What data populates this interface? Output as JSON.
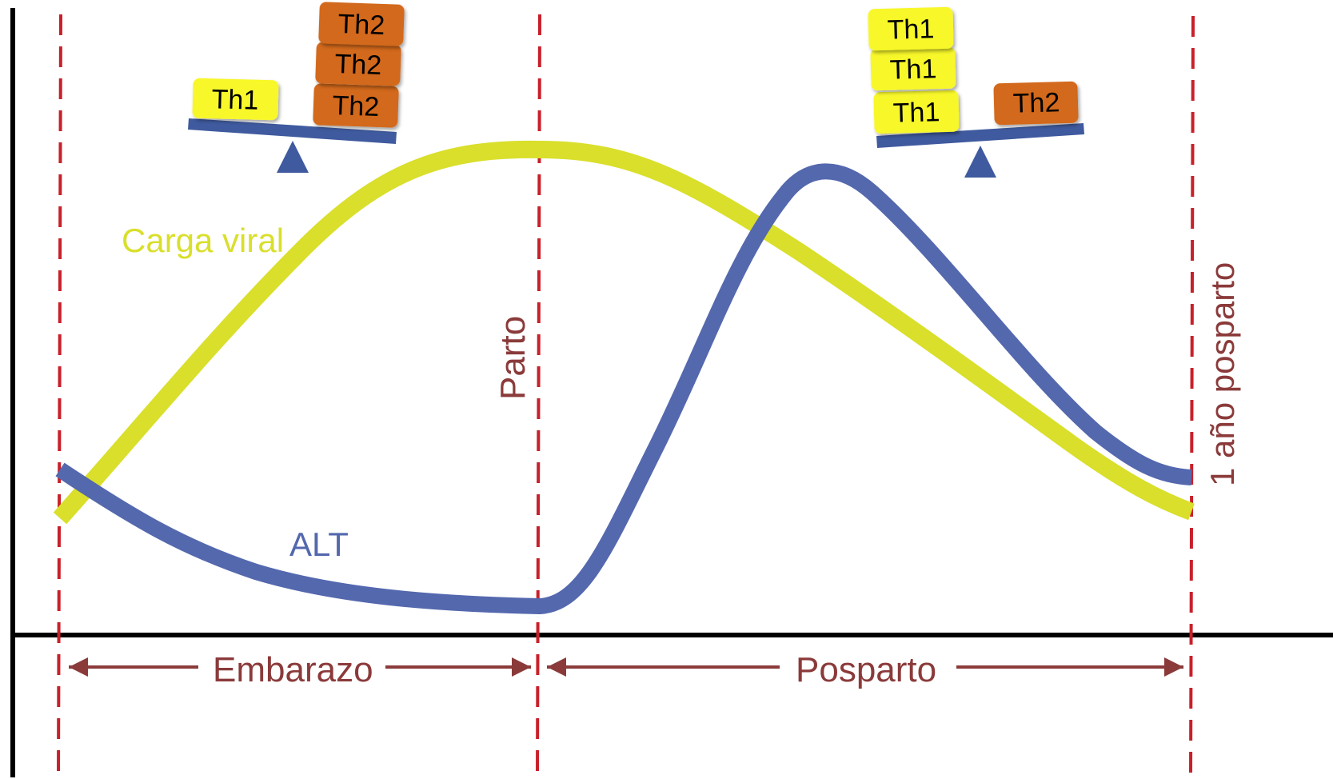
{
  "labels": {
    "viral_load": "Carga viral",
    "alt": "ALT",
    "delivery": "Parto",
    "one_year_postpartum": "1 año posparto",
    "pregnancy": "Embarazo",
    "postpartum": "Posparto"
  },
  "balance_pregnancy": {
    "light_side": [
      "Th1"
    ],
    "heavy_side": [
      "Th2",
      "Th2",
      "Th2"
    ]
  },
  "balance_postpartum": {
    "heavy_side": [
      "Th1",
      "Th1",
      "Th1"
    ],
    "light_side": [
      "Th2"
    ]
  },
  "colors": {
    "viral_load_curve": "#d9df2b",
    "alt_curve": "#5468ae",
    "marker_line": "#c8202a",
    "arrow": "#8b3a3a",
    "th1_block": "#f7f72a",
    "th2_block": "#d2691e",
    "balance_beam": "#3f5a9e",
    "axis": "#000000"
  }
}
